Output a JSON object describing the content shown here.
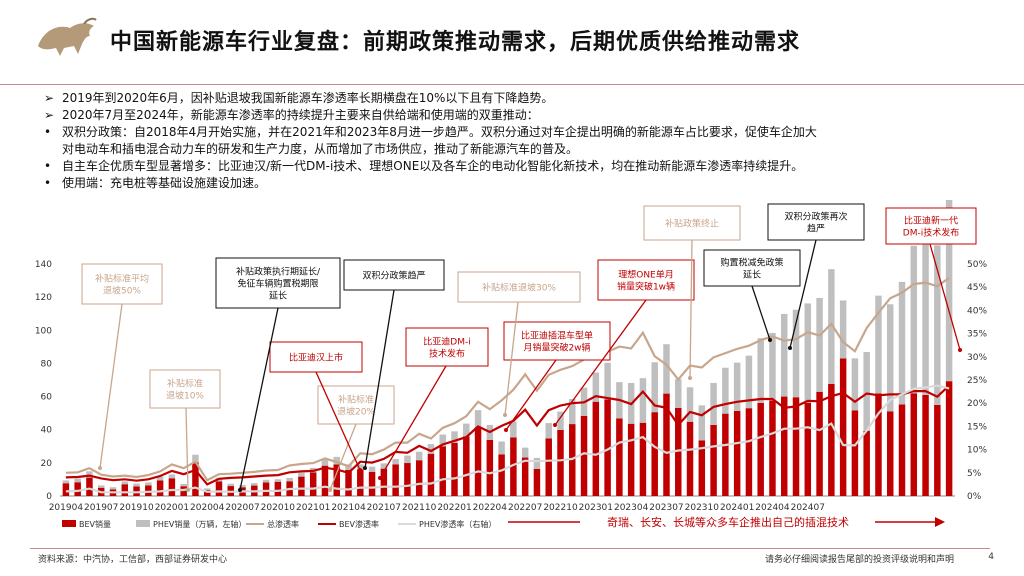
{
  "page": {
    "title": "中国新能源车行业复盘：前期政策推动需求，后期优质供给推动需求",
    "bullets": [
      {
        "marker": "➢",
        "text": "2019年到2020年6月，因补贴退坡我国新能源车渗透率长期横盘在10%以下且有下降趋势。"
      },
      {
        "marker": "➢",
        "text": "2020年7月至2024年，新能源车渗透率的持续提升主要来自供给端和使用端的双重推动："
      },
      {
        "marker": "•",
        "text": "双积分政策：自2018年4月开始实施，并在2021年和2023年8月进一步趋严。双积分通过对车企提出明确的新能源车占比要求，促使车企加大"
      },
      {
        "marker": "",
        "text": "对电动车和插电混合动力车的研发和生产力度，从而增加了市场供应，推动了新能源汽车的普及。"
      },
      {
        "marker": "•",
        "text": "自主车企优质车型显著增多：比亚迪汉/新一代DM-i技术、理想ONE以及各车企的电动化智能化新技术，均在推动新能源车渗透率持续提升。"
      },
      {
        "marker": "•",
        "text": "使用端：充电桩等基础设施建设加速。"
      }
    ],
    "footer": {
      "source": "资料来源：中汽协，工信部，西部证券研发中心",
      "disclaimer": "请务必仔细阅读报告尾部的投资评级说明和声明",
      "page_number": "4"
    },
    "colors": {
      "accent": "#c00000",
      "bev": "#c00000",
      "phev": "#bfbfbf",
      "total_rate": "#c8a68c",
      "bev_rate": "#c00000",
      "phev_rate": "#d9d9d9"
    }
  },
  "chart_data": {
    "type": "bar",
    "x_tick_labels": [
      "201904",
      "201907",
      "201910",
      "202001",
      "202004",
      "202007",
      "202010",
      "202101",
      "202104",
      "202107",
      "202110",
      "202201",
      "202204",
      "202207",
      "202210",
      "202301",
      "202304",
      "202307",
      "202310",
      "202401",
      "202404",
      "202407"
    ],
    "y_left": {
      "range": [
        0,
        140
      ],
      "ticks": [
        "0",
        "20",
        "40",
        "60",
        "80",
        "100",
        "120",
        "140"
      ]
    },
    "y_right": {
      "range": [
        0,
        50
      ],
      "ticks": [
        "0%",
        "5%",
        "10%",
        "15%",
        "20%",
        "25%",
        "30%",
        "35%",
        "40%",
        "45%",
        "50%"
      ]
    },
    "series": [
      {
        "name": "BEV销量",
        "type": "bar",
        "axis": "left",
        "values": [
          7.7,
          8.3,
          11.1,
          5.0,
          4.0,
          7.1,
          5.8,
          6.4,
          9.4,
          10.7,
          5.9,
          20.3,
          3.6,
          8.8,
          6.0,
          5.3,
          6.3,
          8.2,
          8.6,
          8.9,
          11.7,
          14.2,
          18.3,
          19.1,
          15.8,
          16.1,
          14.6,
          16.5,
          19.1,
          19.9,
          21.6,
          25.5,
          30.0,
          32.1,
          36.0,
          41.5,
          33.9,
          25.1,
          35.3,
          23.2,
          16.3,
          34.7,
          39.9,
          43.4,
          48.3,
          56.9,
          58.3,
          46.8,
          43.6,
          44.2,
          50.6,
          61.8,
          53.1,
          44.8,
          33.6,
          42.9,
          49.7,
          51.3,
          53.0,
          56.2,
          57.6,
          60.0,
          59.6,
          56.2,
          62.9,
          67.7,
          83.0,
          51.7,
          39.3,
          61.9,
          51.1,
          55.2,
          62.0,
          61.0,
          55.0,
          69.3
        ]
      },
      {
        "name": "PHEV销量（万辆，左轴）",
        "type": "bar",
        "axis": "left",
        "values": [
          1.7,
          2.2,
          3.8,
          1.4,
          1.3,
          1.7,
          1.7,
          1.8,
          2.4,
          2.3,
          1.4,
          4.6,
          1.0,
          2.2,
          1.4,
          1.3,
          1.5,
          1.6,
          1.5,
          2.0,
          2.3,
          2.8,
          3.6,
          4.5,
          3.3,
          3.0,
          3.1,
          3.2,
          3.2,
          4.5,
          5.1,
          5.8,
          7.1,
          6.9,
          7.7,
          10.3,
          9.0,
          7.8,
          9.7,
          6.0,
          6.7,
          9.3,
          11.0,
          15.1,
          17.1,
          17.6,
          22.1,
          21.9,
          24.6,
          26.9,
          30.1,
          29.8,
          17.4,
          20.8,
          21.1,
          25.3,
          27.7,
          29.2,
          31.7,
          39.0,
          40.8,
          49.9,
          52.8,
          60.0,
          56.6,
          69.2,
          35.0,
          31.4,
          47.6,
          59.0,
          64.6,
          74.0,
          89.0,
          99.0,
          96.3,
          110.0
        ]
      },
      {
        "name": "总渗透率",
        "type": "line",
        "axis": "right",
        "values": [
          5.0,
          5.1,
          6.0,
          4.6,
          4.2,
          4.4,
          4.1,
          4.5,
          5.3,
          6.8,
          6.0,
          7.4,
          3.4,
          4.7,
          4.8,
          5.0,
          5.2,
          5.5,
          5.6,
          6.6,
          6.9,
          7.1,
          8.1,
          7.3,
          6.4,
          9.2,
          9.0,
          10.0,
          11.5,
          11.5,
          13.4,
          12.4,
          14.7,
          15.7,
          17.2,
          20.3,
          18.7,
          20.6,
          22.9,
          26.2,
          22.7,
          26.1,
          27.2,
          28.0,
          29.4,
          30.4,
          31.1,
          32.2,
          31.8,
          35.2,
          30.1,
          28.3,
          25.1,
          28.1,
          27.7,
          29.9,
          30.8,
          31.7,
          32.4,
          33.6,
          34.4,
          33.5,
          33.8,
          35.3,
          34.6,
          37.1,
          33.2,
          31.2,
          36.2,
          39.5,
          42.6,
          43.8,
          45.7,
          46.0,
          45.2,
          47.0
        ]
      },
      {
        "name": "BEV渗透率",
        "type": "line",
        "axis": "right",
        "values": [
          4.0,
          4.1,
          4.4,
          3.8,
          3.4,
          3.6,
          3.3,
          3.6,
          4.3,
          5.4,
          4.7,
          5.6,
          2.5,
          3.7,
          3.9,
          4.0,
          4.2,
          4.4,
          4.5,
          5.1,
          5.3,
          5.4,
          6.1,
          5.7,
          5.0,
          7.4,
          7.2,
          8.0,
          9.5,
          9.3,
          10.8,
          9.7,
          11.1,
          11.9,
          12.7,
          15.0,
          13.8,
          15.1,
          16.2,
          18.6,
          15.2,
          18.5,
          19.5,
          20.0,
          20.2,
          21.5,
          21.1,
          20.7,
          19.8,
          22.5,
          19.5,
          19.0,
          15.3,
          18.1,
          17.4,
          19.2,
          19.8,
          20.3,
          20.6,
          20.9,
          20.9,
          19.0,
          19.3,
          20.5,
          20.4,
          21.5,
          22.2,
          20.3,
          22.1,
          21.7,
          21.9,
          21.9,
          22.6,
          22.6,
          21.4,
          23.8
        ]
      },
      {
        "name": "PHEV渗透率（右轴）",
        "type": "line",
        "axis": "right",
        "values": [
          1.0,
          1.1,
          1.6,
          0.8,
          0.8,
          0.8,
          0.8,
          0.9,
          1.0,
          1.3,
          1.3,
          1.8,
          0.9,
          1.0,
          0.9,
          1.0,
          1.0,
          1.1,
          1.1,
          1.5,
          1.6,
          1.6,
          2.0,
          1.6,
          1.4,
          1.8,
          1.8,
          2.0,
          2.0,
          2.2,
          2.6,
          2.7,
          3.6,
          3.8,
          4.5,
          5.3,
          4.9,
          5.5,
          6.7,
          7.6,
          7.5,
          7.6,
          7.7,
          8.0,
          9.2,
          8.9,
          10.0,
          11.5,
          12.0,
          12.7,
          10.6,
          9.3,
          9.8,
          10.0,
          10.3,
          10.7,
          11.0,
          11.4,
          11.8,
          12.7,
          13.5,
          14.5,
          14.5,
          14.8,
          14.2,
          15.6,
          11.0,
          10.9,
          14.1,
          17.8,
          20.7,
          21.9,
          23.1,
          23.4,
          23.8,
          23.2
        ]
      }
    ],
    "annotations": [
      {
        "text": "补贴标准平均退坡50%",
        "style": "tan"
      },
      {
        "text": "补贴标准退坡10%",
        "style": "tan"
      },
      {
        "text": "补贴标准退坡20%",
        "style": "tan"
      },
      {
        "text": "补贴标准退坡30%",
        "style": "tan"
      },
      {
        "text": "补贴政策终止",
        "style": "tan"
      },
      {
        "text": "补贴政策执行期延长/免征车辆购置税期限延长",
        "style": "black"
      },
      {
        "text": "双积分政策趋严",
        "style": "black"
      },
      {
        "text": "购置税减免政策延长",
        "style": "black"
      },
      {
        "text": "双积分政策再次趋严",
        "style": "black"
      },
      {
        "text": "比亚迪汉上市",
        "style": "red"
      },
      {
        "text": "比亚迪DM-i技术发布",
        "style": "red"
      },
      {
        "text": "比亚迪插混车型单月销量突破2w辆",
        "style": "red"
      },
      {
        "text": "理想ONE单月销量突破1w辆",
        "style": "red"
      },
      {
        "text": "比亚迪新一代DM-i技术发布",
        "style": "red"
      }
    ],
    "bottom_banner": "奇瑞、长安、长城等众多车企推出自己的插混技术"
  }
}
